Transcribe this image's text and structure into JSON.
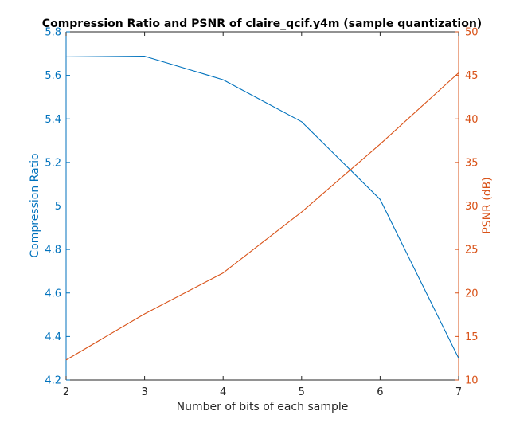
{
  "chart_data": {
    "type": "line",
    "title": "Compression Ratio and PSNR of claire_qcif.y4m (sample quantization)",
    "xlabel": "Number of bits of each sample",
    "ylabel_left": "Compression Ratio",
    "ylabel_right": "PSNR (dB)",
    "x": [
      2,
      3,
      4,
      5,
      6,
      7
    ],
    "xlim": [
      2,
      7
    ],
    "xticks": [
      "2",
      "3",
      "4",
      "5",
      "6",
      "7"
    ],
    "ylim_left": [
      4.2,
      5.8
    ],
    "yticks_left": [
      "4.2",
      "4.4",
      "4.6",
      "4.8",
      "5",
      "5.2",
      "5.4",
      "5.6",
      "5.8"
    ],
    "ylim_right": [
      10,
      50
    ],
    "yticks_right": [
      "10",
      "15",
      "20",
      "25",
      "30",
      "35",
      "40",
      "45",
      "50"
    ],
    "grid": false,
    "legend": "none",
    "series": [
      {
        "axis": "left",
        "color": "#0072BD",
        "values": [
          5.685,
          5.688,
          5.58,
          5.387,
          5.03,
          4.3
        ]
      },
      {
        "axis": "right",
        "color": "#D95319",
        "values": [
          12.3,
          17.6,
          22.3,
          29.3,
          37.1,
          45.3
        ]
      }
    ],
    "colors": {
      "left_axis": "#0072BD",
      "right_axis": "#D95319",
      "bottom_axis": "#262626"
    }
  }
}
